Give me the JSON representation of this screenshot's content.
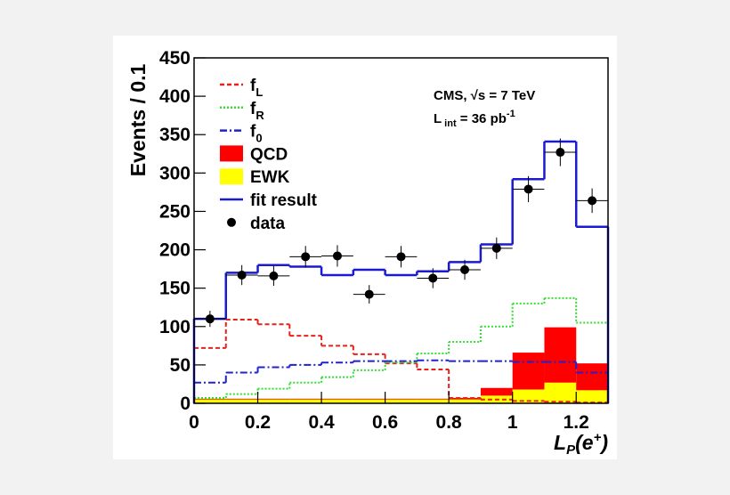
{
  "chart_data": {
    "type": "histogram",
    "ylabel": "Events / 0.1",
    "xlabel": {
      "main": "L",
      "sub": "P",
      "rest": "(e",
      "sup": "+",
      "end": ")"
    },
    "annotations": [
      {
        "text": "CMS, √s = 7 TeV"
      },
      {
        "text": "L",
        "sub": "int",
        "text2": " = 36 pb",
        "sup": "-1"
      }
    ],
    "bins": [
      0,
      0.1,
      0.2,
      0.3,
      0.4,
      0.5,
      0.6,
      0.7,
      0.8,
      0.9,
      1.0,
      1.1,
      1.2,
      1.3
    ],
    "xlim": [
      0,
      1.3
    ],
    "ylim": [
      0,
      450
    ],
    "xticks": [
      0,
      0.2,
      0.4,
      0.6,
      0.8,
      1,
      1.2
    ],
    "yticks": [
      0,
      50,
      100,
      150,
      200,
      250,
      300,
      350,
      400,
      450
    ],
    "series": [
      {
        "name": "f",
        "sub": "L",
        "style": "dashed",
        "color": "#e8221a",
        "values": [
          72,
          109,
          103,
          88,
          75,
          64,
          52,
          44,
          7,
          5,
          3,
          2,
          1
        ]
      },
      {
        "name": "f",
        "sub": "R",
        "style": "dotted",
        "color": "#33dd33",
        "values": [
          7,
          12,
          19,
          27,
          34,
          43,
          53,
          65,
          80,
          100,
          130,
          137,
          105
        ]
      },
      {
        "name": "f",
        "sub": "0",
        "style": "dashdot",
        "color": "#2222cc",
        "values": [
          27,
          40,
          47,
          50,
          53,
          55,
          55,
          56,
          55,
          55,
          54,
          54,
          40
        ]
      },
      {
        "name": "QCD",
        "style": "fill",
        "color": "#ff0000",
        "values": [
          1,
          1,
          1,
          1,
          1,
          1,
          1,
          1,
          2,
          10,
          48,
          72,
          35
        ]
      },
      {
        "name": "EWK",
        "style": "fill",
        "color": "#ffff00",
        "values": [
          5,
          5,
          5,
          5,
          5,
          5,
          5,
          5,
          5,
          10,
          18,
          27,
          17
        ]
      },
      {
        "name": "fit result",
        "style": "solid",
        "color": "#1a1ad0",
        "values": [
          110,
          170,
          180,
          178,
          167,
          174,
          167,
          172,
          184,
          207,
          292,
          341,
          230
        ]
      }
    ],
    "points": {
      "name": "data",
      "color": "#000000",
      "values": [
        110,
        167,
        166,
        191,
        192,
        142,
        191,
        163,
        174,
        202,
        279,
        327,
        264
      ],
      "errors": [
        10.5,
        13,
        13,
        14,
        14,
        12,
        14,
        13,
        13,
        14,
        17,
        18,
        16
      ]
    }
  }
}
